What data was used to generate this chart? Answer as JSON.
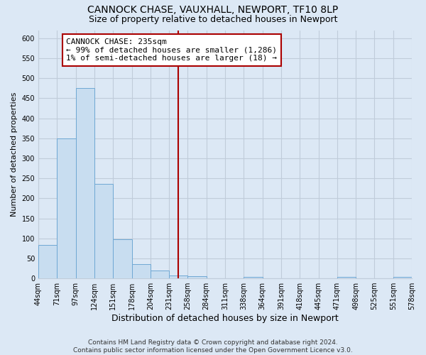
{
  "title": "CANNOCK CHASE, VAUXHALL, NEWPORT, TF10 8LP",
  "subtitle": "Size of property relative to detached houses in Newport",
  "xlabel": "Distribution of detached houses by size in Newport",
  "ylabel": "Number of detached properties",
  "bin_labels": [
    "44sqm",
    "71sqm",
    "97sqm",
    "124sqm",
    "151sqm",
    "178sqm",
    "204sqm",
    "231sqm",
    "258sqm",
    "284sqm",
    "311sqm",
    "338sqm",
    "364sqm",
    "391sqm",
    "418sqm",
    "445sqm",
    "471sqm",
    "498sqm",
    "525sqm",
    "551sqm",
    "578sqm"
  ],
  "bar_heights": [
    84,
    349,
    476,
    236,
    97,
    35,
    19,
    7,
    5,
    0,
    0,
    3,
    0,
    0,
    0,
    0,
    3,
    0,
    0,
    3
  ],
  "bar_color": "#c8ddf0",
  "bar_edge_color": "#6fa8d4",
  "vline_x_index": 7.5,
  "vline_color": "#aa0000",
  "annotation_text": "CANNOCK CHASE: 235sqm\n← 99% of detached houses are smaller (1,286)\n1% of semi-detached houses are larger (18) →",
  "annotation_box_color": "#ffffff",
  "annotation_box_edge": "#aa0000",
  "ylim": [
    0,
    620
  ],
  "yticks": [
    0,
    50,
    100,
    150,
    200,
    250,
    300,
    350,
    400,
    450,
    500,
    550,
    600
  ],
  "footer_text": "Contains HM Land Registry data © Crown copyright and database right 2024.\nContains public sector information licensed under the Open Government Licence v3.0.",
  "bg_color": "#dce8f5",
  "plot_bg_color": "#dce8f5",
  "grid_color": "#c0ccda",
  "title_fontsize": 10,
  "subtitle_fontsize": 9,
  "axis_label_fontsize": 8,
  "tick_fontsize": 7,
  "annotation_fontsize": 8,
  "footer_fontsize": 6.5
}
